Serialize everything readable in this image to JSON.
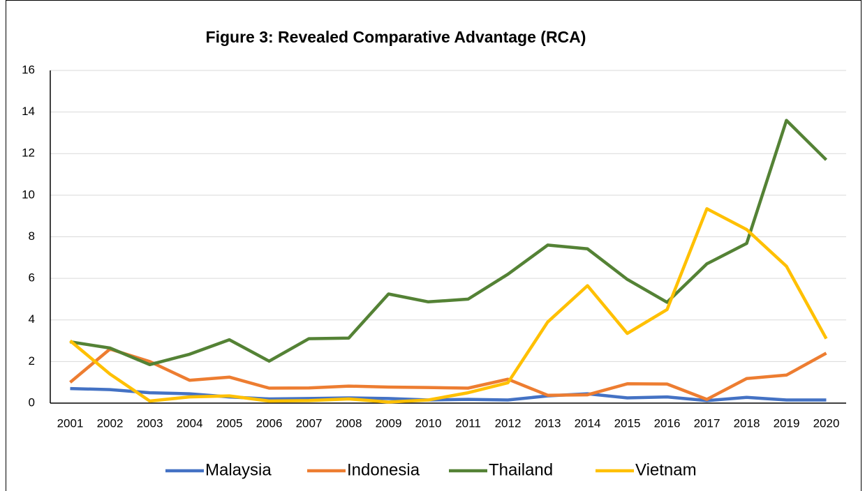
{
  "chart_data": {
    "type": "line",
    "title": "Figure 3: Revealed Comparative Advantage (RCA)",
    "categories": [
      "2001",
      "2002",
      "2003",
      "2004",
      "2005",
      "2006",
      "2007",
      "2008",
      "2009",
      "2010",
      "2011",
      "2012",
      "2013",
      "2014",
      "2015",
      "2016",
      "2017",
      "2018",
      "2019",
      "2020"
    ],
    "series": [
      {
        "name": "Malaysia",
        "color": "#4472c4",
        "values": [
          0.7,
          0.65,
          0.5,
          0.45,
          0.3,
          0.2,
          0.22,
          0.25,
          0.22,
          0.15,
          0.18,
          0.15,
          0.35,
          0.45,
          0.25,
          0.3,
          0.12,
          0.28,
          0.15,
          0.15
        ]
      },
      {
        "name": "Indonesia",
        "color": "#ed7d31",
        "values": [
          1.0,
          2.6,
          2.0,
          1.1,
          1.25,
          0.72,
          0.73,
          0.82,
          0.77,
          0.75,
          0.72,
          1.15,
          0.38,
          0.4,
          0.93,
          0.92,
          0.18,
          1.18,
          1.35,
          2.4
        ]
      },
      {
        "name": "Thailand",
        "color": "#548235",
        "values": [
          2.95,
          2.65,
          1.85,
          2.35,
          3.05,
          2.02,
          3.1,
          3.13,
          5.25,
          4.87,
          5.0,
          6.2,
          7.6,
          7.42,
          5.95,
          4.85,
          6.7,
          7.68,
          13.6,
          11.7
        ]
      },
      {
        "name": "Vietnam",
        "color": "#ffc000",
        "values": [
          3.0,
          1.4,
          0.1,
          0.3,
          0.35,
          0.1,
          0.12,
          0.2,
          0.05,
          0.15,
          0.5,
          0.98,
          3.9,
          5.65,
          3.35,
          4.5,
          9.35,
          8.35,
          6.58,
          3.1
        ]
      }
    ],
    "ylim": [
      0,
      16
    ],
    "yticks": [
      0,
      2,
      4,
      6,
      8,
      10,
      12,
      14,
      16
    ],
    "grid": true,
    "legend": "bottom"
  }
}
